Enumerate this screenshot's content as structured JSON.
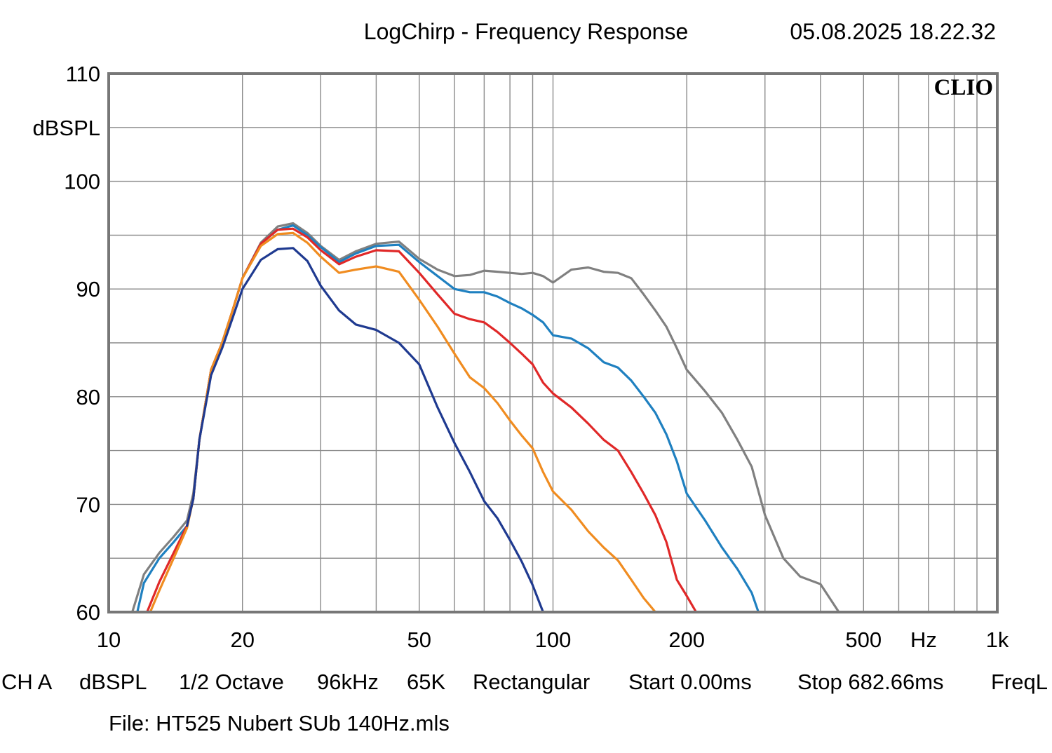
{
  "chart_data": {
    "type": "line",
    "title": "LogChirp - Frequency Response",
    "timestamp": "05.08.2025 18.22.32",
    "brand": "CLIO",
    "xlabel": "Hz",
    "ylabel": "dBSPL",
    "x_scale": "log",
    "xlim": [
      10,
      1000
    ],
    "ylim": [
      60,
      110
    ],
    "grid": true,
    "y_ticks": [
      {
        "value": 110,
        "label": "110"
      },
      {
        "value": 100,
        "label": "100"
      },
      {
        "value": 90,
        "label": "90"
      },
      {
        "value": 80,
        "label": "80"
      },
      {
        "value": 70,
        "label": "70"
      },
      {
        "value": 60,
        "label": "60"
      }
    ],
    "x_ticks": [
      {
        "value": 10,
        "label": "10"
      },
      {
        "value": 20,
        "label": "20"
      },
      {
        "value": 50,
        "label": "50"
      },
      {
        "value": 100,
        "label": "100"
      },
      {
        "value": 200,
        "label": "200"
      },
      {
        "value": 500,
        "label": "500"
      },
      {
        "value": 1000,
        "label": "1k"
      }
    ],
    "series": [
      {
        "color": "#808080",
        "x": [
          11.3,
          12,
          13,
          14,
          15,
          15.5,
          16,
          17,
          18,
          19,
          20,
          22,
          24,
          26,
          28,
          30,
          33,
          36,
          40,
          45,
          50,
          55,
          60,
          65,
          70,
          75,
          80,
          85,
          90,
          95,
          100,
          110,
          120,
          130,
          140,
          150,
          160,
          170,
          180,
          190,
          200,
          220,
          240,
          260,
          280,
          300,
          330,
          360,
          400,
          440
        ],
        "y": [
          60,
          63.5,
          65.5,
          67,
          68.5,
          71,
          76,
          82.5,
          85,
          88,
          91,
          94.3,
          95.8,
          96.1,
          95.2,
          94,
          92.7,
          93.5,
          94.2,
          94.4,
          92.8,
          91.8,
          91.2,
          91.3,
          91.7,
          91.6,
          91.5,
          91.4,
          91.5,
          91.2,
          90.6,
          91.8,
          92,
          91.6,
          91.5,
          91,
          89.5,
          88,
          86.5,
          84.5,
          82.5,
          80.5,
          78.5,
          76,
          73.5,
          69,
          65,
          63.3,
          62.6,
          60
        ]
      },
      {
        "color": "#1f80c0",
        "x": [
          11.6,
          12,
          13,
          14,
          15,
          15.5,
          16,
          17,
          18,
          19,
          20,
          22,
          24,
          26,
          28,
          30,
          33,
          36,
          40,
          45,
          50,
          55,
          60,
          65,
          70,
          75,
          80,
          85,
          90,
          95,
          100,
          110,
          120,
          130,
          140,
          150,
          160,
          170,
          180,
          190,
          200,
          220,
          240,
          260,
          280,
          290
        ],
        "y": [
          60,
          62.7,
          65,
          66.5,
          68,
          70.5,
          76,
          82.5,
          85,
          88,
          91,
          94.2,
          95.5,
          95.9,
          95,
          93.9,
          92.5,
          93.3,
          94,
          94.1,
          92.5,
          91.2,
          90,
          89.7,
          89.7,
          89.3,
          88.7,
          88.2,
          87.6,
          86.9,
          85.7,
          85.4,
          84.5,
          83.2,
          82.7,
          81.5,
          80,
          78.5,
          76.5,
          74,
          71,
          68.5,
          66,
          64,
          61.8,
          60
        ]
      },
      {
        "color": "#e02828",
        "x": [
          12.2,
          13,
          14,
          15,
          15.5,
          16,
          17,
          18,
          19,
          20,
          22,
          24,
          26,
          28,
          30,
          33,
          36,
          40,
          45,
          50,
          55,
          60,
          65,
          70,
          75,
          80,
          85,
          90,
          95,
          100,
          110,
          120,
          130,
          140,
          150,
          160,
          170,
          180,
          190,
          200,
          210
        ],
        "y": [
          60,
          62.8,
          65.5,
          68,
          70.5,
          76,
          82.5,
          85,
          88,
          91,
          94.2,
          95.5,
          95.6,
          94.8,
          93.6,
          92.3,
          93,
          93.6,
          93.5,
          91.5,
          89.5,
          87.7,
          87.2,
          86.9,
          86,
          85,
          84,
          83,
          81.3,
          80.3,
          79,
          77.5,
          76,
          75,
          73,
          71,
          69,
          66.5,
          63,
          61.5,
          60
        ]
      },
      {
        "color": "#f08c20",
        "x": [
          12.4,
          13,
          14,
          15,
          15.5,
          16,
          17,
          18,
          19,
          20,
          22,
          24,
          26,
          28,
          30,
          33,
          36,
          40,
          45,
          50,
          55,
          60,
          65,
          70,
          75,
          80,
          85,
          90,
          95,
          100,
          110,
          120,
          130,
          140,
          150,
          160,
          170
        ],
        "y": [
          60,
          62,
          65,
          67.8,
          70.5,
          76,
          82.5,
          85,
          88,
          91,
          94,
          95.1,
          95.2,
          94.3,
          93,
          91.5,
          91.8,
          92.1,
          91.6,
          89,
          86.5,
          84,
          81.8,
          80.8,
          79.4,
          77.8,
          76.4,
          75.2,
          73,
          71.2,
          69.5,
          67.5,
          66,
          64.8,
          63,
          61.3,
          60
        ]
      },
      {
        "color": "#1f3a90",
        "x": [
          15,
          15.5,
          16,
          17,
          18,
          19,
          20,
          22,
          24,
          26,
          28,
          30,
          33,
          36,
          40,
          45,
          50,
          55,
          60,
          65,
          70,
          75,
          80,
          85,
          90,
          95
        ],
        "y": [
          68,
          70.5,
          76,
          82,
          84.5,
          87.3,
          90,
          92.7,
          93.7,
          93.8,
          92.6,
          90.3,
          88,
          86.7,
          86.2,
          85,
          83,
          79,
          75.7,
          73,
          70.3,
          68.7,
          66.7,
          64.7,
          62.5,
          60
        ]
      }
    ]
  },
  "footer": {
    "channel": "CH A",
    "unit": "dBSPL",
    "smoothing": "1/2 Octave",
    "sample_rate": "96kHz",
    "length": "65K",
    "window": "Rectangular",
    "start": "Start 0.00ms",
    "stop": "Stop 682.66ms",
    "freq": "FreqL",
    "file": "File: HT525 Nubert SUb 140Hz.mls"
  }
}
